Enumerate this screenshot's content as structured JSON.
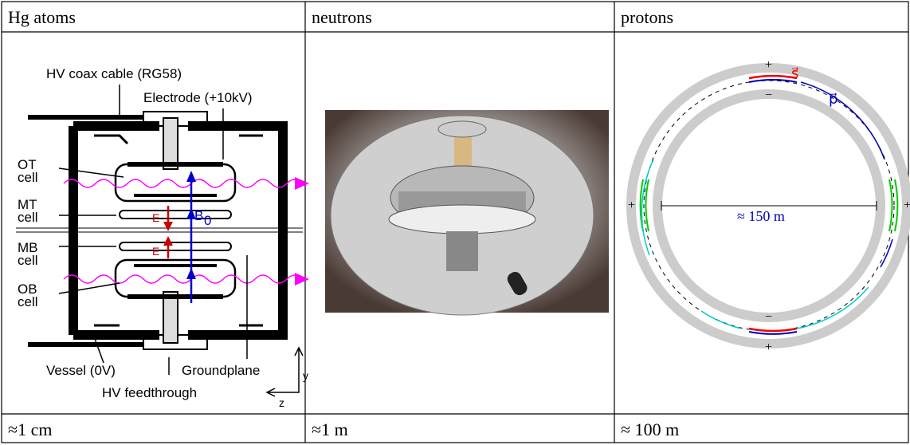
{
  "table": {
    "header": [
      "Hg atoms",
      "neutrons",
      "protons"
    ],
    "footer": [
      "≈1 cm",
      "≈1 m",
      "≈ 100 m"
    ]
  },
  "hg_diagram": {
    "cable": "HV coax cable (RG58)",
    "electrode": "Electrode (+10kV)",
    "ot": [
      "OT",
      "cell"
    ],
    "mt": [
      "MT",
      "cell"
    ],
    "mb": [
      "MB",
      "cell"
    ],
    "ob": [
      "OB",
      "cell"
    ],
    "e_top": "E",
    "e_bottom": "E",
    "b_field": [
      "B",
      "0"
    ],
    "vessel": "Vessel (0V)",
    "groundplane": "Groundplane",
    "feedthrough": "HV feedthrough",
    "axis_y": "y",
    "axis_z": "z"
  },
  "proton_diagram": {
    "spin": "s⃗",
    "momentum": "p⃗",
    "diameter": "≈ 150 m"
  }
}
